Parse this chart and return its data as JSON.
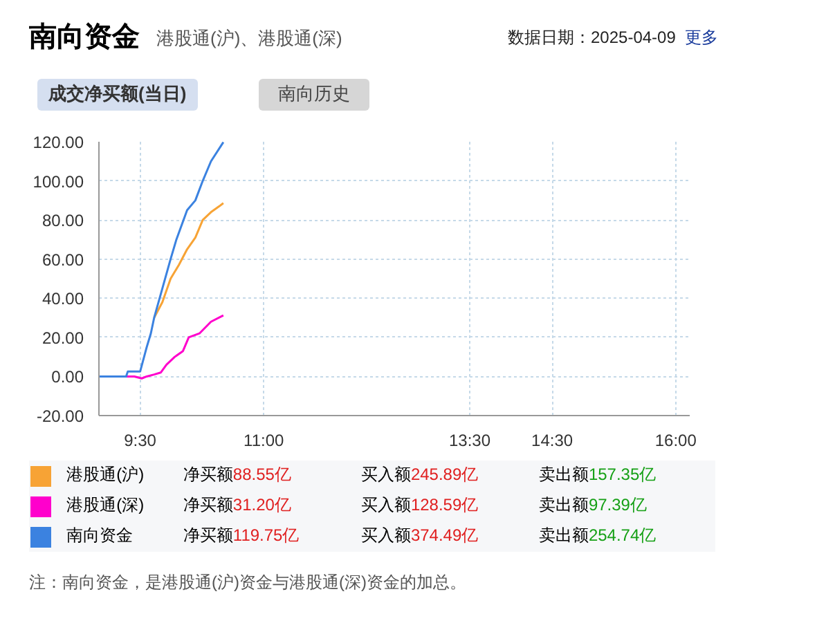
{
  "chart_data": {
    "type": "line",
    "title": "南向资金",
    "subtitle": "港股通(沪)、港股通(深)",
    "annotations": [
      "数据日期：2025-04-09",
      "更多",
      "成交净买额(当日)",
      "南向历史",
      "净买额88.55亿",
      "买入额245.89亿",
      "卖出额157.35亿",
      "净买额31.20亿",
      "买入额128.59亿",
      "卖出额97.39亿",
      "净买额119.75亿",
      "买入额374.49亿",
      "卖出额254.74亿",
      "注：南向资金，是港股通(沪)资金与港股通(深)资金的加总。"
    ],
    "xlim": [
      9,
      16.17
    ],
    "xticks": [
      {
        "value": 9.5,
        "label": "9:30"
      },
      {
        "value": 11,
        "label": "11:00"
      },
      {
        "value": 13.5,
        "label": "13:30"
      },
      {
        "value": 14.5,
        "label": "14:30"
      },
      {
        "value": 16,
        "label": "16:00"
      }
    ],
    "ylim": [
      -20,
      120
    ],
    "yticks": [
      {
        "value": -20,
        "label": "-20.00"
      },
      {
        "value": 0,
        "label": "0.00"
      },
      {
        "value": 20,
        "label": "20.00"
      },
      {
        "value": 40,
        "label": "40.00"
      },
      {
        "value": 60,
        "label": "60.00"
      },
      {
        "value": 80,
        "label": "80.00"
      },
      {
        "value": 100,
        "label": "100.00"
      },
      {
        "value": 120,
        "label": "120.00"
      }
    ],
    "grid": true,
    "legend": "bottom",
    "line_style": "solid",
    "series": [
      {
        "name": "港股通(沪)",
        "color": "#f7a335",
        "x": [
          9.67,
          9.77,
          9.87,
          9.97,
          10.07,
          10.17,
          10.26,
          10.36,
          10.46,
          10.51
        ],
        "values": [
          30,
          38,
          50,
          57,
          65,
          71,
          80,
          84,
          87,
          88.6
        ]
      },
      {
        "name": "港股通(深)",
        "color": "#ff00cc",
        "x": [
          9,
          9.43,
          9.52,
          9.58,
          9.67,
          9.75,
          9.82,
          9.92,
          10.02,
          10.09,
          10.22,
          10.36,
          10.51
        ],
        "values": [
          0,
          0,
          -1,
          0,
          1,
          2,
          6,
          10,
          13,
          20,
          22,
          28,
          31.2
        ]
      },
      {
        "name": "南向资金",
        "color": "#3b82e0",
        "x": [
          9,
          9.33,
          9.35,
          9.5,
          9.58,
          9.63,
          9.67,
          9.77,
          9.87,
          9.94,
          10.07,
          10.17,
          10.26,
          10.36,
          10.51
        ],
        "values": [
          0,
          0,
          2.5,
          2.5,
          15,
          22,
          30,
          45,
          60,
          70,
          85,
          90,
          100,
          110,
          119.8
        ]
      }
    ]
  }
}
